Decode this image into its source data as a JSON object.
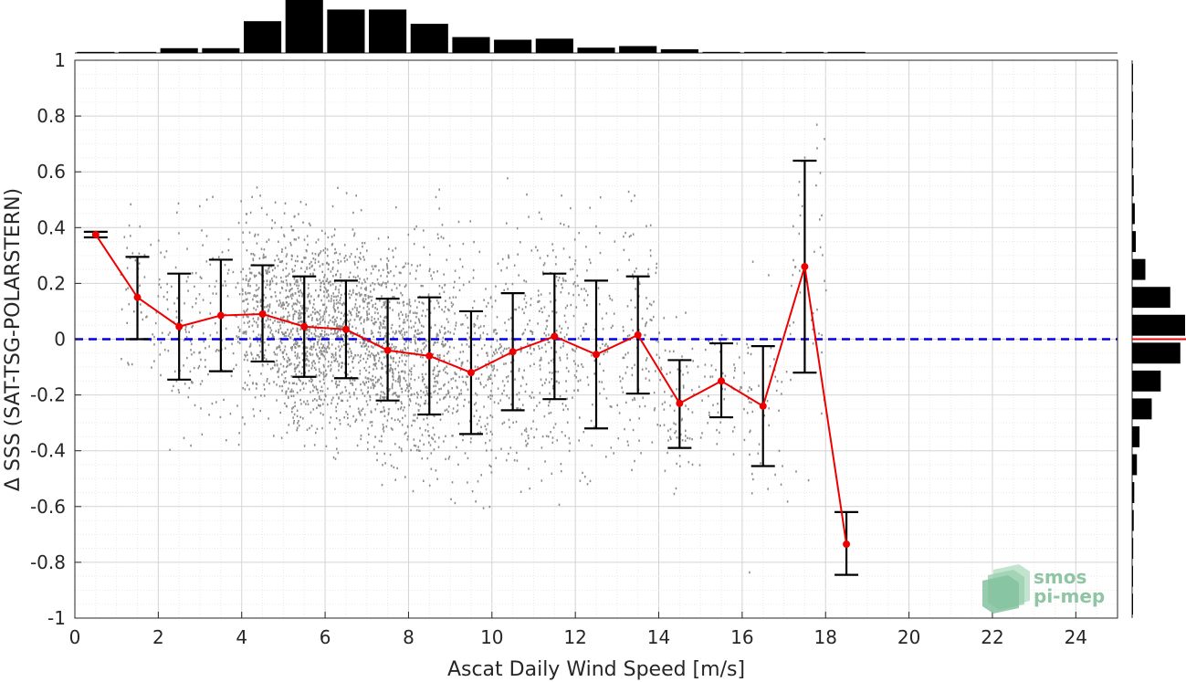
{
  "chart_data": {
    "type": "scatter",
    "xlabel": "Ascat Daily Wind Speed [m/s]",
    "ylabel": "Δ SSS (SAT-TSG-POLARSTERN)",
    "xlim": [
      0,
      25
    ],
    "ylim": [
      -1,
      1
    ],
    "x_ticks": [
      0,
      2,
      4,
      6,
      8,
      10,
      12,
      14,
      16,
      18,
      20,
      22,
      24
    ],
    "y_ticks": [
      -1,
      -0.8,
      -0.6,
      -0.4,
      -0.2,
      0,
      0.2,
      0.4,
      0.6,
      0.8,
      1
    ],
    "y_tick_labels": [
      "-1",
      "-0.8",
      "-0.6",
      "-0.4",
      "-0.2",
      "0",
      "0.2",
      "0.4",
      "0.6",
      "0.8",
      "1"
    ],
    "grid": true,
    "zero_line": {
      "y": 0,
      "color": "#0000ee",
      "style": "dashed"
    },
    "scatter_color": "#8c8c8c",
    "binned_mean": {
      "color": "#ee0000",
      "x": [
        0.5,
        1.5,
        2.5,
        3.5,
        4.5,
        5.5,
        6.5,
        7.5,
        8.5,
        9.5,
        10.5,
        11.5,
        12.5,
        13.5,
        14.5,
        15.5,
        16.5,
        17.5,
        18.5
      ],
      "y": [
        0.375,
        0.15,
        0.045,
        0.085,
        0.09,
        0.045,
        0.035,
        -0.04,
        -0.06,
        -0.12,
        -0.045,
        0.01,
        -0.055,
        0.015,
        -0.23,
        -0.15,
        -0.24,
        0.26,
        -0.735
      ],
      "err_low": [
        0.365,
        0.0,
        -0.145,
        -0.115,
        -0.08,
        -0.135,
        -0.14,
        -0.22,
        -0.27,
        -0.34,
        -0.255,
        -0.215,
        -0.32,
        -0.195,
        -0.39,
        -0.28,
        -0.455,
        -0.12,
        -0.845
      ],
      "err_high": [
        0.385,
        0.295,
        0.235,
        0.285,
        0.265,
        0.225,
        0.21,
        0.145,
        0.15,
        0.1,
        0.165,
        0.235,
        0.21,
        0.225,
        -0.075,
        -0.015,
        -0.025,
        0.64,
        -0.62
      ]
    },
    "top_histogram": {
      "bin_centers": [
        0.5,
        1.5,
        2.5,
        3.5,
        4.5,
        5.5,
        6.5,
        7.5,
        8.5,
        9.5,
        10.5,
        11.5,
        12.5,
        13.5,
        14.5,
        15.5,
        16.5,
        17.5,
        18.5
      ],
      "relative_counts": [
        0.02,
        0.02,
        0.09,
        0.09,
        0.6,
        1.0,
        0.82,
        0.82,
        0.55,
        0.3,
        0.25,
        0.27,
        0.1,
        0.13,
        0.07,
        0.02,
        0.02,
        0.02,
        0.02
      ]
    },
    "right_histogram": {
      "bin_centers": [
        -0.95,
        -0.85,
        -0.75,
        -0.65,
        -0.55,
        -0.45,
        -0.35,
        -0.25,
        -0.15,
        -0.05,
        0.05,
        0.15,
        0.25,
        0.35,
        0.45,
        0.55,
        0.65,
        0.75,
        0.85,
        0.95
      ],
      "relative_counts": [
        0.0,
        0.01,
        0.02,
        0.03,
        0.04,
        0.09,
        0.14,
        0.37,
        0.54,
        0.91,
        1.0,
        0.72,
        0.25,
        0.07,
        0.05,
        0.03,
        0.02,
        0.01,
        0.01,
        0.0
      ],
      "mean_line_color": "#ee0000"
    }
  },
  "logo": {
    "line1": "smos",
    "line2": "pi-mep"
  }
}
